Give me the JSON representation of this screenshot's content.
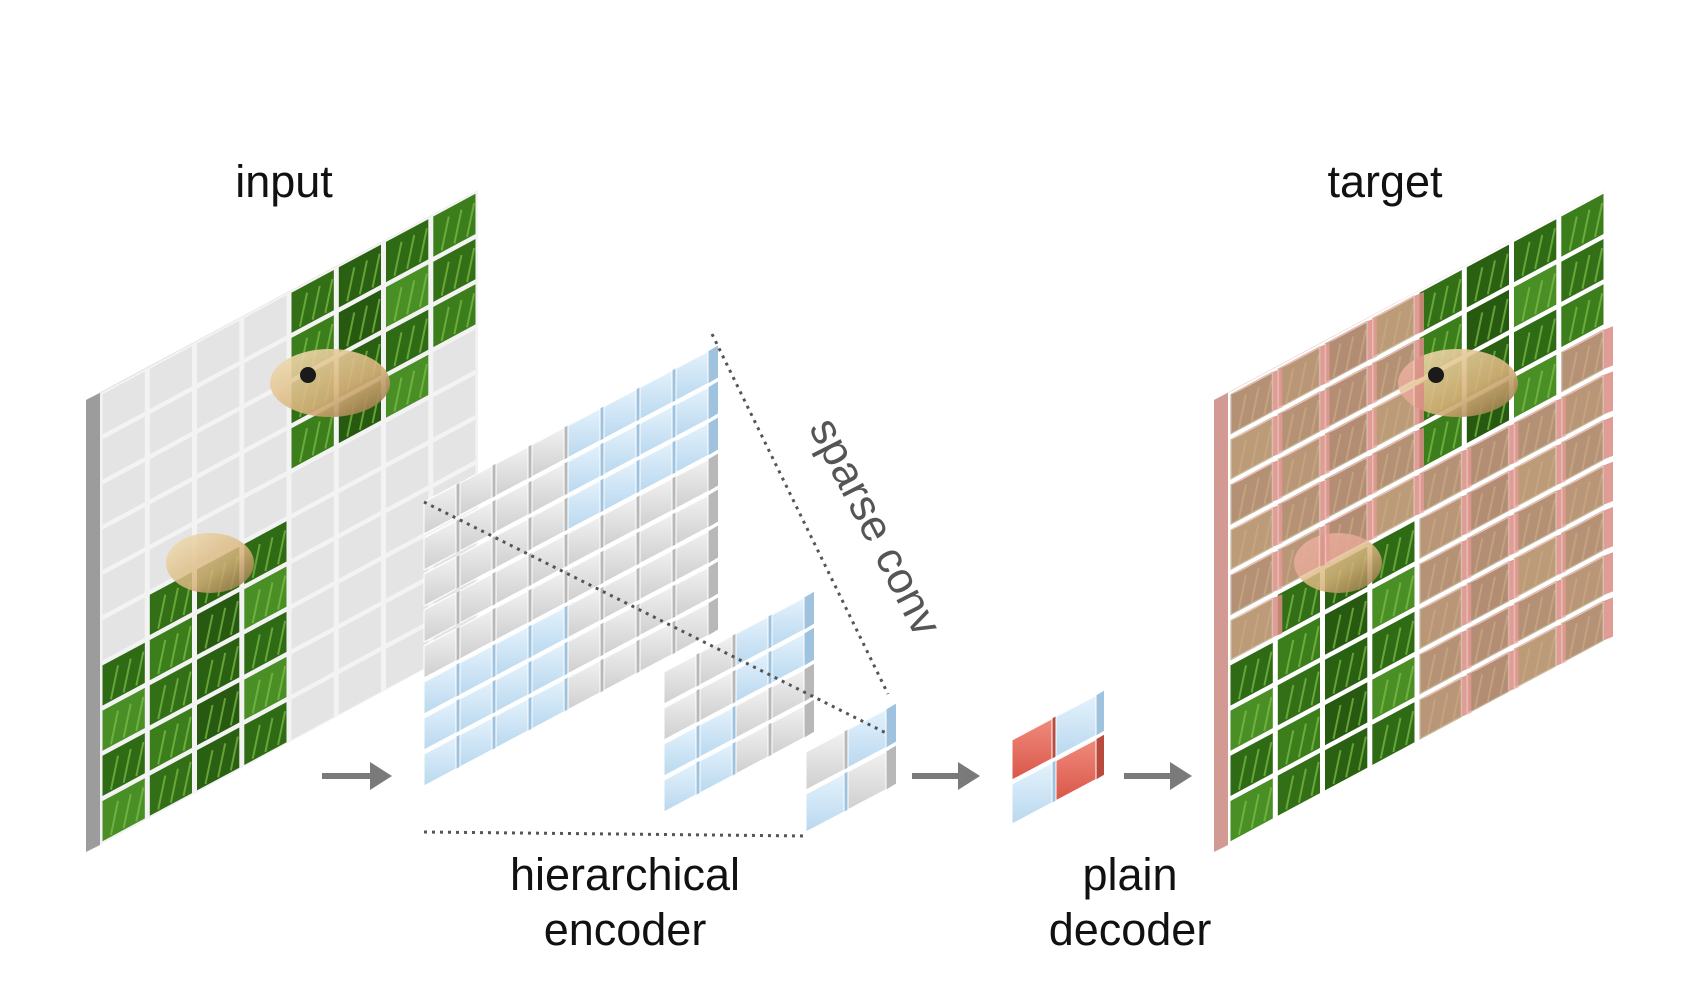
{
  "labels": {
    "input": "input",
    "target": "target",
    "sparse_conv": "sparse conv",
    "encoder_line1": "hierarchical",
    "encoder_line2": "encoder",
    "decoder_line1": "plain",
    "decoder_line2": "decoder"
  },
  "colors": {
    "grass": "#3d7a1c",
    "grass_dark": "#1f4a0c",
    "masked_tile": "#e4e4e4",
    "masked_board": "#f0f0f0",
    "encoder_blue": "#cfe6f7",
    "encoder_gray": "#e2e2e2",
    "decoder_red": "#ec6e5e",
    "target_overlay": "#e8a09a",
    "arrow": "#7a7a7a"
  },
  "input_mask": [
    [
      0,
      0,
      0,
      0,
      1,
      1,
      1,
      1
    ],
    [
      0,
      0,
      0,
      0,
      1,
      1,
      1,
      1
    ],
    [
      0,
      0,
      0,
      0,
      1,
      1,
      1,
      1
    ],
    [
      0,
      0,
      0,
      0,
      1,
      1,
      1,
      0
    ],
    [
      0,
      0,
      0,
      0,
      0,
      0,
      0,
      0
    ],
    [
      0,
      1,
      1,
      1,
      0,
      0,
      0,
      0
    ],
    [
      1,
      1,
      1,
      1,
      0,
      0,
      0,
      0
    ],
    [
      1,
      1,
      1,
      1,
      0,
      0,
      0,
      0
    ],
    [
      1,
      1,
      1,
      1,
      0,
      0,
      0,
      0
    ],
    [
      1,
      1,
      1,
      1,
      0,
      0,
      0,
      0
    ]
  ],
  "encoder_stage1_mask": [
    [
      0,
      0,
      0,
      0,
      1,
      1,
      1,
      1
    ],
    [
      0,
      0,
      0,
      0,
      1,
      1,
      1,
      1
    ],
    [
      0,
      0,
      0,
      0,
      1,
      1,
      1,
      1
    ],
    [
      0,
      0,
      0,
      0,
      0,
      0,
      0,
      0
    ],
    [
      0,
      0,
      0,
      0,
      0,
      0,
      0,
      0
    ],
    [
      1,
      1,
      1,
      1,
      0,
      0,
      0,
      0
    ],
    [
      1,
      1,
      1,
      1,
      0,
      0,
      0,
      0
    ],
    [
      1,
      1,
      1,
      1,
      0,
      0,
      0,
      0
    ]
  ],
  "encoder_stage2_mask": [
    [
      0,
      0,
      1,
      1
    ],
    [
      0,
      0,
      1,
      1
    ],
    [
      1,
      1,
      0,
      0
    ],
    [
      1,
      1,
      0,
      0
    ]
  ],
  "encoder_stage3_mask": [
    [
      0,
      1
    ],
    [
      1,
      0
    ]
  ],
  "decoder_colors": [
    [
      "red",
      "blue"
    ],
    [
      "blue",
      "red"
    ]
  ]
}
